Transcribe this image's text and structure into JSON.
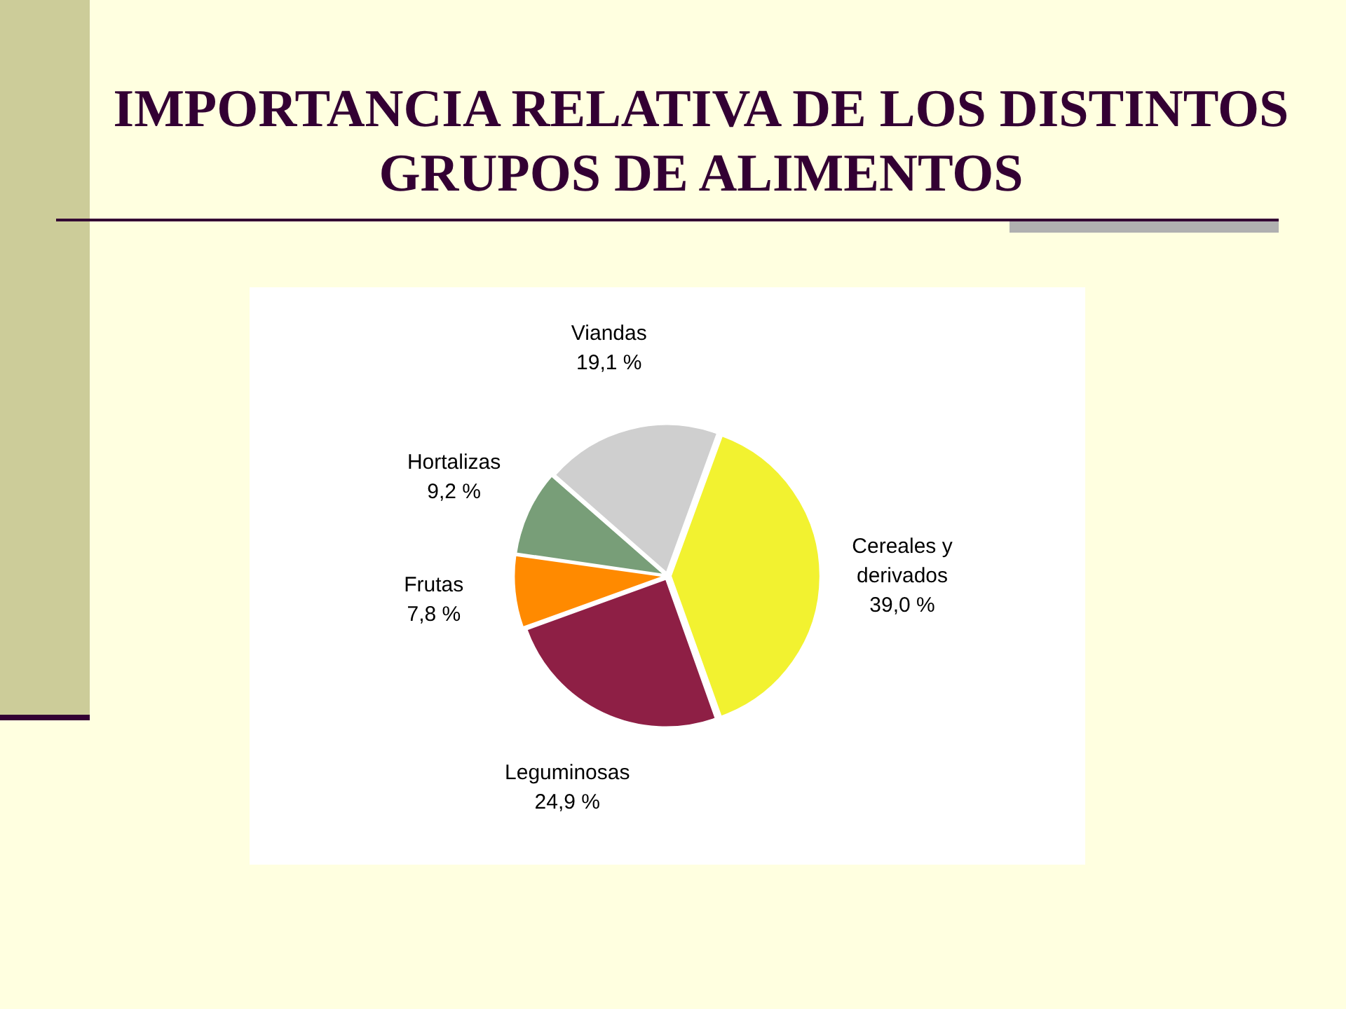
{
  "chart_data": {
    "type": "pie",
    "title": "IMPORTANCIA RELATIVA DE LOS DISTINTOS GRUPOS DE ALIMENTOS",
    "categories": [
      "Cereales y derivados",
      "Leguminosas",
      "Frutas",
      "Hortalizas",
      "Viandas"
    ],
    "values": [
      39.0,
      24.9,
      7.8,
      9.2,
      19.1
    ],
    "value_labels": [
      "39,0 %",
      "24,9 %",
      "7,8 %",
      "9,2 %",
      "19,1 %"
    ],
    "colors": [
      "#f2f230",
      "#8e1f45",
      "#ff8a00",
      "#789e78",
      "#cfcfcf"
    ],
    "legend": false
  }
}
